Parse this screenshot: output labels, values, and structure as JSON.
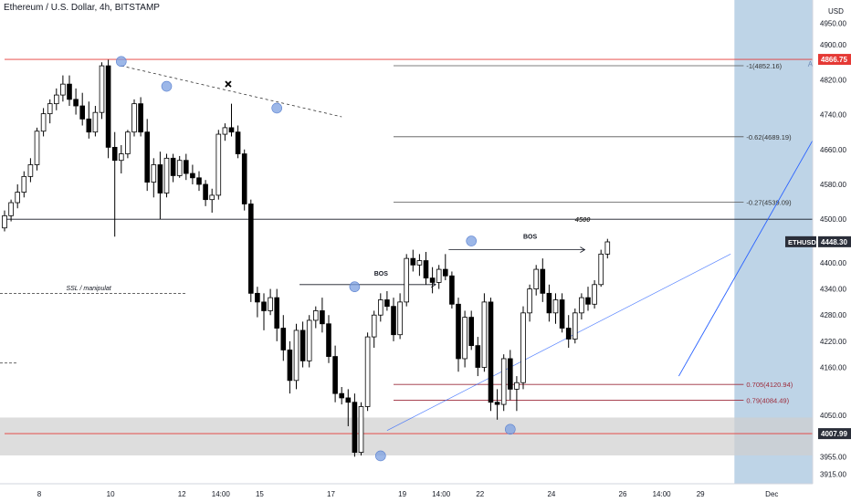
{
  "header": {
    "title": "Ethereum / U.S. Dollar, 4h, BITSTAMP"
  },
  "colors": {
    "up": "#ffffff",
    "down": "#000000",
    "wick": "#000000",
    "red_line": "#e53935",
    "maroon_line": "#9c2a3a",
    "blue": "#2962ff",
    "future_zone": "#b3cde3",
    "demand_zone": "#cfcfcf",
    "grid": "#f0f3fa"
  },
  "chart_data": {
    "type": "candlestick",
    "symbol": "ETHUSD",
    "timeframe": "4h",
    "exchange": "BITSTAMP",
    "y_range": [
      3893,
      5003
    ],
    "y_ticks": [
      "4950.00",
      "4900.00",
      "4820.00",
      "4740.00",
      "4660.00",
      "4580.00",
      "4500.00",
      "4400.00",
      "4340.00",
      "4280.00",
      "4220.00",
      "4160.00",
      "4050.00",
      "3955.00",
      "3915.00"
    ],
    "x_ticks": [
      {
        "label": "8",
        "bar": 0
      },
      {
        "label": "10",
        "bar": 11
      },
      {
        "label": "12",
        "bar": 22
      },
      {
        "label": "14:00",
        "bar": 28
      },
      {
        "label": "15",
        "bar": 34
      },
      {
        "label": "17",
        "bar": 45
      },
      {
        "label": "19",
        "bar": 56
      },
      {
        "label": "14:00",
        "bar": 62
      },
      {
        "label": "22",
        "bar": 68
      },
      {
        "label": "24",
        "bar": 79
      },
      {
        "label": "26",
        "bar": 90
      },
      {
        "label": "14:00",
        "bar": 96
      },
      {
        "label": "29",
        "bar": 102
      },
      {
        "label": "Dec",
        "bar": 113
      }
    ],
    "currency_label": "USD",
    "price_labels": [
      {
        "text": "4866.75",
        "value": 4866.75,
        "style": "red"
      },
      {
        "text": "4448.30",
        "value": 4448.3,
        "style": "dark",
        "tag": "ETHUSD"
      },
      {
        "text": "4007.99",
        "value": 4007.99,
        "style": "dark"
      }
    ],
    "candles": [
      {
        "o": 4480,
        "h": 4520,
        "l": 4472,
        "c": 4508
      },
      {
        "o": 4508,
        "h": 4545,
        "l": 4495,
        "c": 4538
      },
      {
        "o": 4538,
        "h": 4580,
        "l": 4525,
        "c": 4562
      },
      {
        "o": 4562,
        "h": 4610,
        "l": 4550,
        "c": 4598
      },
      {
        "o": 4598,
        "h": 4640,
        "l": 4585,
        "c": 4625
      },
      {
        "o": 4625,
        "h": 4710,
        "l": 4612,
        "c": 4702
      },
      {
        "o": 4702,
        "h": 4755,
        "l": 4690,
        "c": 4742
      },
      {
        "o": 4742,
        "h": 4775,
        "l": 4720,
        "c": 4765
      },
      {
        "o": 4765,
        "h": 4800,
        "l": 4750,
        "c": 4785
      },
      {
        "o": 4785,
        "h": 4830,
        "l": 4770,
        "c": 4810
      },
      {
        "o": 4810,
        "h": 4830,
        "l": 4760,
        "c": 4775
      },
      {
        "o": 4775,
        "h": 4800,
        "l": 4740,
        "c": 4760
      },
      {
        "o": 4760,
        "h": 4790,
        "l": 4715,
        "c": 4730
      },
      {
        "o": 4730,
        "h": 4770,
        "l": 4685,
        "c": 4700
      },
      {
        "o": 4700,
        "h": 4760,
        "l": 4690,
        "c": 4745
      },
      {
        "o": 4745,
        "h": 4860,
        "l": 4730,
        "c": 4852
      },
      {
        "o": 4852,
        "h": 4866,
        "l": 4640,
        "c": 4665
      },
      {
        "o": 4665,
        "h": 4700,
        "l": 4460,
        "c": 4635
      },
      {
        "o": 4635,
        "h": 4670,
        "l": 4605,
        "c": 4650
      },
      {
        "o": 4650,
        "h": 4705,
        "l": 4640,
        "c": 4700
      },
      {
        "o": 4700,
        "h": 4775,
        "l": 4690,
        "c": 4765
      },
      {
        "o": 4765,
        "h": 4780,
        "l": 4690,
        "c": 4700
      },
      {
        "o": 4700,
        "h": 4730,
        "l": 4565,
        "c": 4585
      },
      {
        "o": 4585,
        "h": 4640,
        "l": 4550,
        "c": 4625
      },
      {
        "o": 4625,
        "h": 4655,
        "l": 4500,
        "c": 4560
      },
      {
        "o": 4560,
        "h": 4650,
        "l": 4550,
        "c": 4640
      },
      {
        "o": 4640,
        "h": 4650,
        "l": 4585,
        "c": 4600
      },
      {
        "o": 4600,
        "h": 4645,
        "l": 4595,
        "c": 4635
      },
      {
        "o": 4635,
        "h": 4650,
        "l": 4590,
        "c": 4605
      },
      {
        "o": 4605,
        "h": 4625,
        "l": 4580,
        "c": 4595
      },
      {
        "o": 4595,
        "h": 4610,
        "l": 4565,
        "c": 4580
      },
      {
        "o": 4580,
        "h": 4590,
        "l": 4530,
        "c": 4545
      },
      {
        "o": 4545,
        "h": 4570,
        "l": 4515,
        "c": 4555
      },
      {
        "o": 4555,
        "h": 4705,
        "l": 4545,
        "c": 4695
      },
      {
        "o": 4695,
        "h": 4720,
        "l": 4680,
        "c": 4710
      },
      {
        "o": 4710,
        "h": 4765,
        "l": 4690,
        "c": 4700
      },
      {
        "o": 4700,
        "h": 4715,
        "l": 4640,
        "c": 4650
      },
      {
        "o": 4650,
        "h": 4660,
        "l": 4520,
        "c": 4535
      },
      {
        "o": 4535,
        "h": 4545,
        "l": 4310,
        "c": 4330
      },
      {
        "o": 4330,
        "h": 4345,
        "l": 4275,
        "c": 4310
      },
      {
        "o": 4310,
        "h": 4330,
        "l": 4245,
        "c": 4290
      },
      {
        "o": 4290,
        "h": 4340,
        "l": 4280,
        "c": 4320
      },
      {
        "o": 4320,
        "h": 4340,
        "l": 4220,
        "c": 4250
      },
      {
        "o": 4250,
        "h": 4280,
        "l": 4175,
        "c": 4200
      },
      {
        "o": 4200,
        "h": 4220,
        "l": 4100,
        "c": 4130
      },
      {
        "o": 4130,
        "h": 4260,
        "l": 4110,
        "c": 4245
      },
      {
        "o": 4245,
        "h": 4265,
        "l": 4160,
        "c": 4175
      },
      {
        "o": 4175,
        "h": 4280,
        "l": 4160,
        "c": 4268
      },
      {
        "o": 4268,
        "h": 4300,
        "l": 4250,
        "c": 4290
      },
      {
        "o": 4290,
        "h": 4320,
        "l": 4240,
        "c": 4260
      },
      {
        "o": 4260,
        "h": 4280,
        "l": 4170,
        "c": 4185
      },
      {
        "o": 4185,
        "h": 4210,
        "l": 4080,
        "c": 4100
      },
      {
        "o": 4100,
        "h": 4115,
        "l": 4075,
        "c": 4090
      },
      {
        "o": 4090,
        "h": 4110,
        "l": 4025,
        "c": 4080
      },
      {
        "o": 4080,
        "h": 4100,
        "l": 3955,
        "c": 3965
      },
      {
        "o": 3965,
        "h": 4080,
        "l": 3958,
        "c": 4070
      },
      {
        "o": 4070,
        "h": 4240,
        "l": 4060,
        "c": 4230
      },
      {
        "o": 4230,
        "h": 4290,
        "l": 4205,
        "c": 4280
      },
      {
        "o": 4280,
        "h": 4330,
        "l": 4265,
        "c": 4315
      },
      {
        "o": 4315,
        "h": 4335,
        "l": 4290,
        "c": 4300
      },
      {
        "o": 4300,
        "h": 4320,
        "l": 4220,
        "c": 4235
      },
      {
        "o": 4235,
        "h": 4330,
        "l": 4225,
        "c": 4310
      },
      {
        "o": 4310,
        "h": 4420,
        "l": 4300,
        "c": 4410
      },
      {
        "o": 4410,
        "h": 4430,
        "l": 4380,
        "c": 4395
      },
      {
        "o": 4395,
        "h": 4420,
        "l": 4370,
        "c": 4405
      },
      {
        "o": 4405,
        "h": 4425,
        "l": 4350,
        "c": 4365
      },
      {
        "o": 4365,
        "h": 4390,
        "l": 4330,
        "c": 4355
      },
      {
        "o": 4355,
        "h": 4395,
        "l": 4340,
        "c": 4385
      },
      {
        "o": 4385,
        "h": 4420,
        "l": 4360,
        "c": 4370
      },
      {
        "o": 4370,
        "h": 4380,
        "l": 4295,
        "c": 4305
      },
      {
        "o": 4305,
        "h": 4320,
        "l": 4150,
        "c": 4180
      },
      {
        "o": 4180,
        "h": 4290,
        "l": 4160,
        "c": 4275
      },
      {
        "o": 4275,
        "h": 4290,
        "l": 4200,
        "c": 4210
      },
      {
        "o": 4210,
        "h": 4230,
        "l": 4140,
        "c": 4160
      },
      {
        "o": 4160,
        "h": 4330,
        "l": 4150,
        "c": 4310
      },
      {
        "o": 4310,
        "h": 4320,
        "l": 4060,
        "c": 4080
      },
      {
        "o": 4080,
        "h": 4110,
        "l": 4040,
        "c": 4075
      },
      {
        "o": 4075,
        "h": 4190,
        "l": 4060,
        "c": 4180
      },
      {
        "o": 4180,
        "h": 4200,
        "l": 4085,
        "c": 4110
      },
      {
        "o": 4110,
        "h": 4140,
        "l": 4060,
        "c": 4125
      },
      {
        "o": 4125,
        "h": 4300,
        "l": 4110,
        "c": 4285
      },
      {
        "o": 4285,
        "h": 4350,
        "l": 4265,
        "c": 4340
      },
      {
        "o": 4340,
        "h": 4395,
        "l": 4325,
        "c": 4385
      },
      {
        "o": 4385,
        "h": 4410,
        "l": 4310,
        "c": 4330
      },
      {
        "o": 4330,
        "h": 4350,
        "l": 4265,
        "c": 4285
      },
      {
        "o": 4285,
        "h": 4330,
        "l": 4260,
        "c": 4315
      },
      {
        "o": 4315,
        "h": 4330,
        "l": 4240,
        "c": 4250
      },
      {
        "o": 4250,
        "h": 4280,
        "l": 4205,
        "c": 4225
      },
      {
        "o": 4225,
        "h": 4295,
        "l": 4215,
        "c": 4285
      },
      {
        "o": 4285,
        "h": 4330,
        "l": 4270,
        "c": 4320
      },
      {
        "o": 4320,
        "h": 4345,
        "l": 4290,
        "c": 4305
      },
      {
        "o": 4305,
        "h": 4360,
        "l": 4295,
        "c": 4350
      },
      {
        "o": 4350,
        "h": 4430,
        "l": 4345,
        "c": 4420
      },
      {
        "o": 4420,
        "h": 4455,
        "l": 4410,
        "c": 4448
      }
    ],
    "levels": [
      {
        "kind": "red",
        "value": 4866.75,
        "from_bar": 0
      },
      {
        "kind": "dark",
        "value": 4500,
        "from_bar": 0,
        "label": "4500",
        "label_bar": 88
      },
      {
        "kind": "red",
        "value": 4007.99,
        "from_bar": 0
      },
      {
        "kind": "fib",
        "value": 4852.16,
        "from_bar": 60,
        "to_bar": 114,
        "label": "-1(4852.16)"
      },
      {
        "kind": "fib",
        "value": 4689.19,
        "from_bar": 60,
        "to_bar": 114,
        "label": "-0.62(4689.19)"
      },
      {
        "kind": "fib",
        "value": 4539.09,
        "from_bar": 60,
        "to_bar": 114,
        "label": "-0.27(4539.09)"
      },
      {
        "kind": "maroon",
        "value": 4120.94,
        "from_bar": 60,
        "to_bar": 114,
        "label": "0.705(4120.94)"
      },
      {
        "kind": "maroon",
        "value": 4084.49,
        "from_bar": 60,
        "to_bar": 114,
        "label": "0.79(4084.49)"
      }
    ],
    "text_annotations": [
      {
        "text": "ATH",
        "bar": 125,
        "value": 4850
      },
      {
        "text": "SSL / manipulat",
        "bar": 9.5,
        "value": 4337
      },
      {
        "text": "BOS",
        "bar": 57,
        "value": 4370
      },
      {
        "text": "BOS",
        "bar": 80,
        "value": 4455
      }
    ],
    "zones": [
      {
        "kind": "demand",
        "from": 4045,
        "to": 3958
      },
      {
        "kind": "future",
        "from_bar": 113
      }
    ]
  }
}
